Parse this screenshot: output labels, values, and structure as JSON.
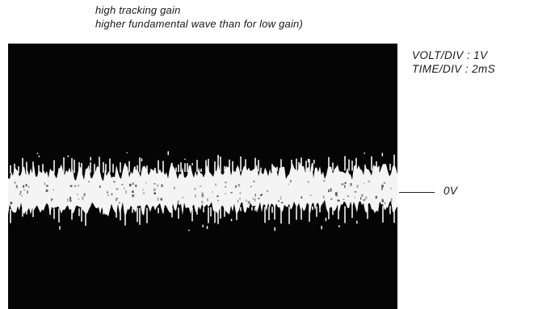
{
  "caption": {
    "line1": "high tracking gain",
    "line2": "higher fundamental wave than for low gain)"
  },
  "scope": {
    "volt_div": "VOLT/DIV : 1V",
    "time_div": "TIME/DIV : 2mS",
    "zero_label": "0V"
  },
  "colors": {
    "screen": "#050505",
    "trace": "#f4f4f4"
  }
}
